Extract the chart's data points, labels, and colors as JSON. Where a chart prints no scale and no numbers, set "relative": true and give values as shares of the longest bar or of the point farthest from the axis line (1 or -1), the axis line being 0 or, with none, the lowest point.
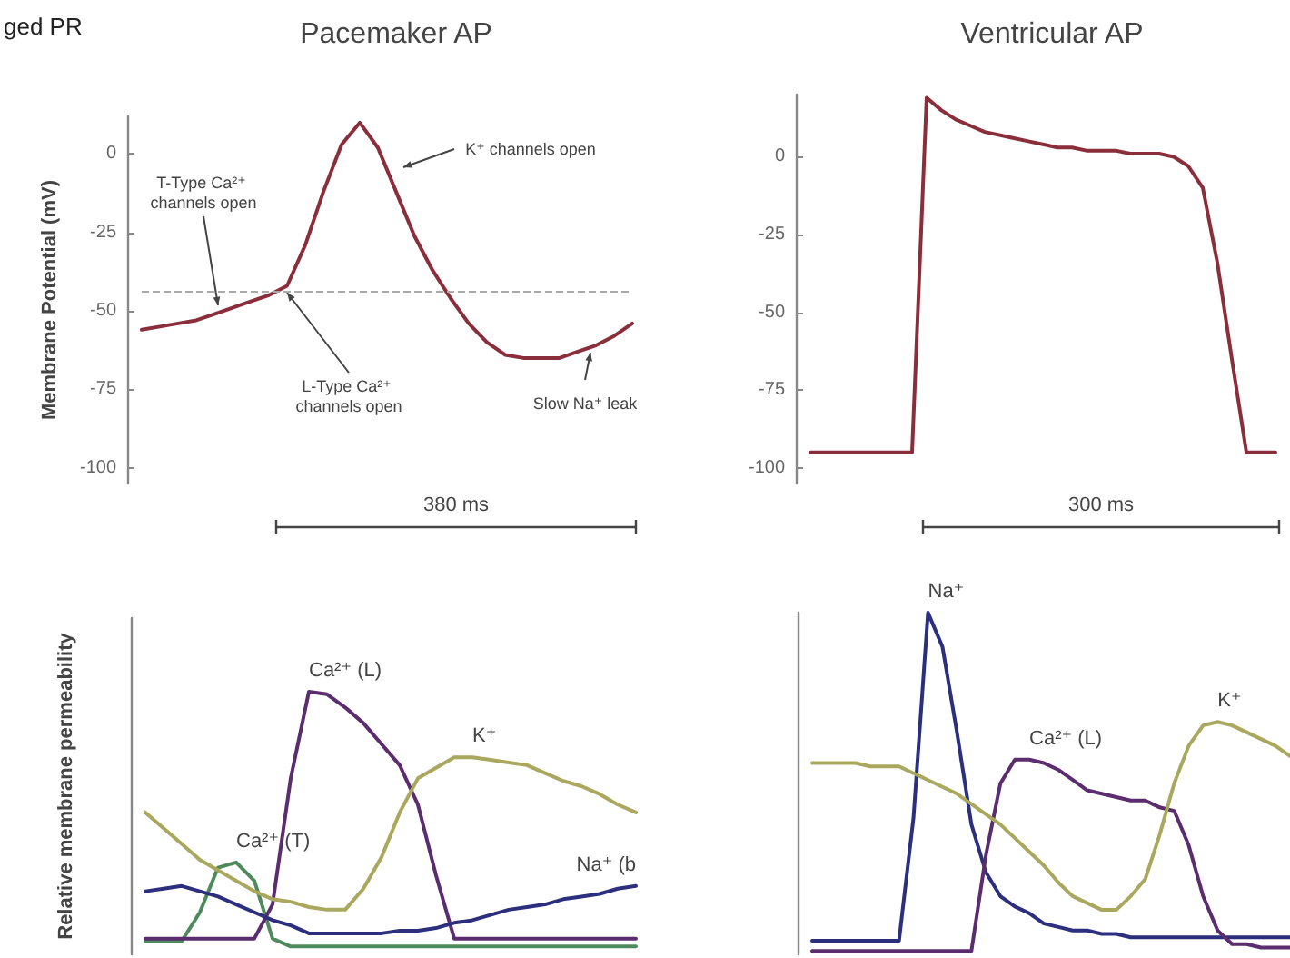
{
  "chart_data": [
    {
      "type": "line",
      "title": "Pacemaker AP",
      "ylabel": "Membrane Potential (mV)",
      "xlabel": "380 ms",
      "color": "#8b2e3c",
      "ylim": [
        -105,
        12
      ],
      "yticks": [
        -100,
        -75,
        -50,
        -25,
        0
      ],
      "tick_labels": "y",
      "categories": [
        null,
        null,
        null,
        null,
        null,
        null,
        null,
        null,
        null,
        null,
        null,
        null,
        null,
        null,
        null,
        null,
        null,
        null,
        null,
        null,
        null,
        null,
        null,
        null,
        null,
        null,
        null,
        null
      ],
      "values": [
        -56,
        -55,
        -54,
        -53,
        -51,
        -49,
        -47,
        -45,
        -42,
        -29,
        -12,
        3,
        10,
        2,
        -12,
        -26,
        -37,
        -46,
        -54,
        -60,
        -64,
        -65,
        -65,
        -65,
        -63,
        -61,
        -58,
        -54
      ],
      "ref_lines": [
        {
          "axis": "y",
          "value": -44,
          "color": "#aaaaaa",
          "line_style": "dashed"
        }
      ],
      "annotations": [
        "ged PR",
        "T-Type Ca²⁺ channels open",
        "K⁺ channels open",
        "L-Type Ca²⁺ channels open",
        "Slow Na⁺ leak"
      ]
    },
    {
      "type": "line",
      "title": "Ventricular AP",
      "xlabel": "300 ms",
      "color": "#8b2e3c",
      "ylim": [
        -105,
        20
      ],
      "yticks": [
        -100,
        -75,
        -50,
        -25,
        0
      ],
      "tick_labels": "y",
      "categories": [
        null,
        null,
        null,
        null,
        null,
        null,
        null,
        null,
        null,
        null,
        null,
        null,
        null,
        null,
        null,
        null,
        null,
        null,
        null,
        null,
        null,
        null,
        null,
        null,
        null,
        null,
        null,
        null,
        null,
        null,
        null,
        null,
        null
      ],
      "values": [
        -95,
        -95,
        -95,
        -95,
        -95,
        -95,
        -95,
        -95,
        19,
        15,
        12,
        10,
        8,
        7,
        6,
        5,
        4,
        3,
        3,
        2,
        2,
        2,
        1,
        1,
        1,
        0,
        -3,
        -10,
        -34,
        -65,
        -95,
        -95,
        -95
      ]
    },
    {
      "type": "line",
      "relative": true,
      "ylabel": "Relative membrane permeability",
      "tick_labels": false,
      "categories": [
        null,
        null,
        null,
        null,
        null,
        null,
        null,
        null,
        null,
        null,
        null,
        null,
        null,
        null,
        null,
        null,
        null,
        null,
        null,
        null,
        null,
        null,
        null,
        null,
        null,
        null,
        null,
        null
      ],
      "series": [
        {
          "name": "Ca²⁺ (T)",
          "color": "#4f8a5c",
          "values": [
            0.05,
            0.05,
            0.05,
            0.16,
            0.33,
            0.35,
            0.28,
            0.06,
            0.03,
            0.03,
            0.03,
            0.03,
            0.03,
            0.03,
            0.03,
            0.03,
            0.03,
            0.03,
            0.03,
            0.03,
            0.03,
            0.03,
            0.03,
            0.03,
            0.03,
            0.03,
            0.03,
            0.03
          ]
        },
        {
          "name": "Ca²⁺ (L)",
          "color": "#5b2d6e",
          "values": [
            0.06,
            0.06,
            0.06,
            0.06,
            0.06,
            0.06,
            0.06,
            0.19,
            0.67,
            1,
            0.99,
            0.94,
            0.88,
            0.8,
            0.72,
            0.57,
            0.3,
            0.06,
            0.06,
            0.06,
            0.06,
            0.06,
            0.06,
            0.06,
            0.06,
            0.06,
            0.06,
            0.06
          ]
        },
        {
          "name": "K⁺",
          "color": "#a9a85e",
          "values": [
            0.54,
            0.48,
            0.42,
            0.36,
            0.32,
            0.28,
            0.24,
            0.21,
            0.2,
            0.18,
            0.17,
            0.17,
            0.25,
            0.37,
            0.54,
            0.67,
            0.71,
            0.75,
            0.75,
            0.74,
            0.73,
            0.72,
            0.69,
            0.66,
            0.64,
            0.61,
            0.57,
            0.54
          ]
        },
        {
          "name": "Na⁺ (b",
          "color": "#2b2f7e",
          "values": [
            0.24,
            0.25,
            0.26,
            0.24,
            0.22,
            0.19,
            0.16,
            0.13,
            0.11,
            0.08,
            0.08,
            0.08,
            0.08,
            0.08,
            0.09,
            0.09,
            0.1,
            0.12,
            0.13,
            0.15,
            0.17,
            0.18,
            0.19,
            0.21,
            0.22,
            0.23,
            0.25,
            0.26
          ]
        }
      ]
    },
    {
      "type": "line",
      "relative": true,
      "tick_labels": false,
      "categories": [
        null,
        null,
        null,
        null,
        null,
        null,
        null,
        null,
        null,
        null,
        null,
        null,
        null,
        null,
        null,
        null,
        null,
        null,
        null,
        null,
        null,
        null,
        null,
        null,
        null,
        null,
        null,
        null,
        null,
        null,
        null,
        null,
        null,
        null
      ],
      "series": [
        {
          "name": "Na⁺",
          "color": "#2b2f7e",
          "values": [
            0.04,
            0.04,
            0.04,
            0.04,
            0.04,
            0.04,
            0.04,
            0.4,
            1,
            0.9,
            0.65,
            0.38,
            0.24,
            0.17,
            0.14,
            0.12,
            0.09,
            0.08,
            0.07,
            0.07,
            0.06,
            0.06,
            0.05,
            0.05,
            0.05,
            0.05,
            0.05,
            0.05,
            0.05,
            0.05,
            0.05,
            0.05,
            0.05,
            0.05
          ]
        },
        {
          "name": "Ca²⁺ (L)",
          "color": "#5b2d6e",
          "values": [
            0.01,
            0.01,
            0.01,
            0.01,
            0.01,
            0.01,
            0.01,
            0.01,
            0.01,
            0.01,
            0.01,
            0.01,
            0.29,
            0.5,
            0.57,
            0.57,
            0.56,
            0.54,
            0.51,
            0.48,
            0.47,
            0.46,
            0.45,
            0.45,
            0.43,
            0.42,
            0.32,
            0.17,
            0.07,
            0.03,
            0.03,
            0.02,
            0.02,
            0.02
          ]
        },
        {
          "name": "K⁺",
          "color": "#a9a85e",
          "values": [
            0.56,
            0.56,
            0.56,
            0.56,
            0.55,
            0.55,
            0.55,
            0.53,
            0.51,
            0.49,
            0.47,
            0.44,
            0.41,
            0.38,
            0.34,
            0.3,
            0.26,
            0.21,
            0.17,
            0.15,
            0.13,
            0.13,
            0.17,
            0.22,
            0.35,
            0.5,
            0.61,
            0.67,
            0.68,
            0.67,
            0.65,
            0.63,
            0.61,
            0.58
          ]
        }
      ]
    }
  ]
}
